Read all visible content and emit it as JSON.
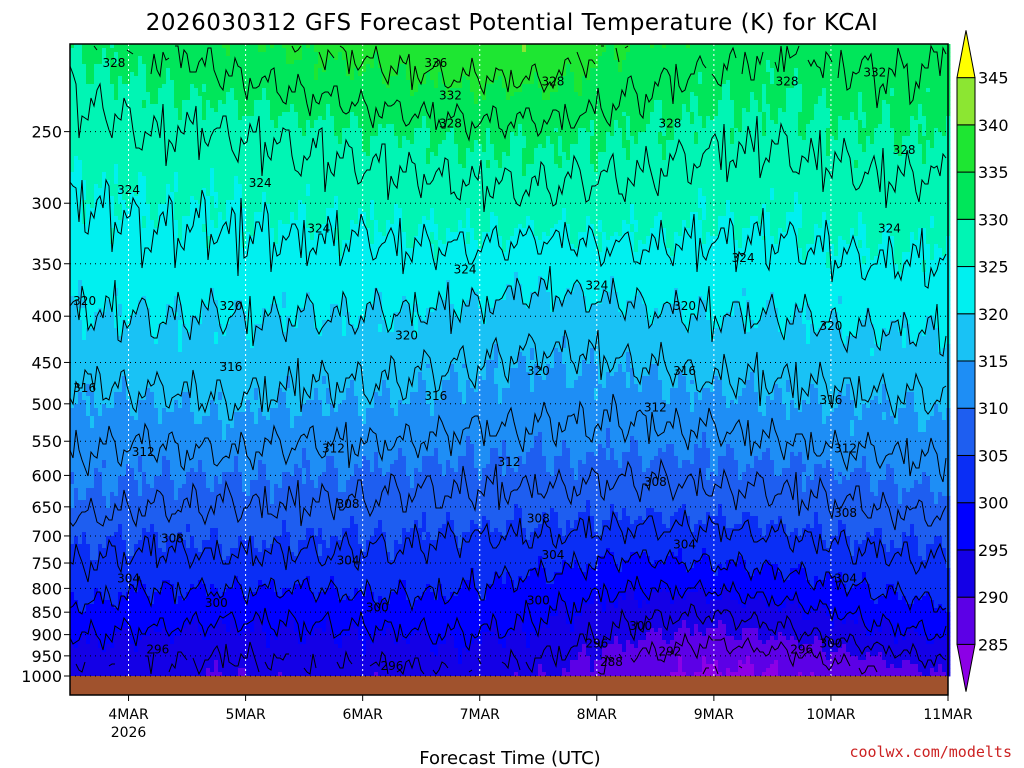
{
  "chart_data": {
    "type": "contour",
    "title": "2026030312 GFS Forecast Potential Temperature (K) for KCAI",
    "xlabel": "Forecast Time (UTC)",
    "ylabel": "",
    "credit": "coolwx.com/modelts",
    "y_axis": {
      "scale": "log",
      "inverted": true,
      "range": [
        1000,
        200
      ],
      "ticks": [
        250,
        300,
        350,
        400,
        450,
        500,
        550,
        600,
        650,
        700,
        750,
        800,
        850,
        900,
        950,
        1000
      ]
    },
    "x_axis": {
      "range": [
        "2026-03-03T12",
        "2026-03-11T00"
      ],
      "ticks": [
        {
          "value": "2026-03-04T00",
          "label": "4MAR",
          "sublabel": "2026"
        },
        {
          "value": "2026-03-05T00",
          "label": "5MAR",
          "sublabel": ""
        },
        {
          "value": "2026-03-06T00",
          "label": "6MAR",
          "sublabel": ""
        },
        {
          "value": "2026-03-07T00",
          "label": "7MAR",
          "sublabel": ""
        },
        {
          "value": "2026-03-08T00",
          "label": "8MAR",
          "sublabel": ""
        },
        {
          "value": "2026-03-09T00",
          "label": "9MAR",
          "sublabel": ""
        },
        {
          "value": "2026-03-10T00",
          "label": "10MAR",
          "sublabel": ""
        },
        {
          "value": "2026-03-11T00",
          "label": "11MAR",
          "sublabel": ""
        }
      ]
    },
    "grid": true,
    "colorbar": {
      "placement": "right",
      "labels": [
        285,
        290,
        295,
        300,
        305,
        310,
        315,
        320,
        325,
        330,
        335,
        340,
        345
      ],
      "colors": [
        "#8c00e6",
        "#5c00e6",
        "#1400e6",
        "#0000ff",
        "#0a2ef5",
        "#1e5ef0",
        "#1e8ef5",
        "#19c2f5",
        "#00f0f0",
        "#00f5b4",
        "#00e65a",
        "#1ee632",
        "#8ce632",
        "#ffff00"
      ]
    },
    "ground_color": "#a0522d",
    "contour_interval": 4,
    "levels": [
      {
        "p": 1000,
        "theta": [
          292,
          292,
          290,
          292,
          291,
          292,
          290,
          287,
          284,
          285,
          287,
          290
        ]
      },
      {
        "p": 950,
        "theta": [
          294,
          293,
          292,
          293,
          293,
          294,
          292,
          288,
          286,
          287,
          290,
          293
        ]
      },
      {
        "p": 900,
        "theta": [
          296,
          295,
          294,
          295,
          295,
          296,
          294,
          291,
          289,
          291,
          294,
          296
        ]
      },
      {
        "p": 850,
        "theta": [
          299,
          298,
          297,
          297,
          298,
          298,
          296,
          293,
          292,
          294,
          297,
          299
        ]
      },
      {
        "p": 800,
        "theta": [
          302,
          300,
          300,
          300,
          301,
          300,
          298,
          296,
          296,
          298,
          300,
          302
        ]
      },
      {
        "p": 750,
        "theta": [
          304,
          303,
          303,
          303,
          303,
          302,
          301,
          299,
          300,
          301,
          303,
          304
        ]
      },
      {
        "p": 700,
        "theta": [
          306,
          305,
          306,
          305,
          305,
          304,
          304,
          303,
          303,
          304,
          305,
          306
        ]
      },
      {
        "p": 650,
        "theta": [
          309,
          308,
          308,
          308,
          307,
          307,
          306,
          306,
          306,
          307,
          308,
          309
        ]
      },
      {
        "p": 600,
        "theta": [
          311,
          310,
          310,
          310,
          309,
          309,
          309,
          308,
          309,
          309,
          310,
          311
        ]
      },
      {
        "p": 550,
        "theta": [
          313,
          312,
          313,
          312,
          312,
          311,
          311,
          311,
          311,
          312,
          313,
          313
        ]
      },
      {
        "p": 500,
        "theta": [
          315,
          315,
          316,
          315,
          315,
          314,
          313,
          313,
          314,
          315,
          315,
          316
        ]
      },
      {
        "p": 450,
        "theta": [
          317,
          318,
          318,
          317,
          317,
          316,
          315,
          316,
          317,
          317,
          318,
          318
        ]
      },
      {
        "p": 400,
        "theta": [
          320,
          320,
          320,
          320,
          320,
          319,
          318,
          319,
          320,
          320,
          321,
          321
        ]
      },
      {
        "p": 350,
        "theta": [
          322,
          323,
          323,
          323,
          323,
          323,
          322,
          323,
          323,
          323,
          324,
          324
        ]
      },
      {
        "p": 300,
        "theta": [
          324,
          325,
          325,
          326,
          326,
          327,
          327,
          327,
          326,
          326,
          327,
          327
        ]
      },
      {
        "p": 250,
        "theta": [
          327,
          328,
          328,
          329,
          330,
          331,
          331,
          330,
          329,
          329,
          330,
          330
        ]
      },
      {
        "p": 200,
        "theta": [
          330,
          332,
          334,
          336,
          338,
          339,
          339,
          335,
          333,
          332,
          333,
          333
        ]
      }
    ],
    "contour_labels": [
      {
        "value": "328",
        "time": "2026-03-03T21",
        "p": 210
      },
      {
        "value": "336",
        "time": "2026-03-06T15",
        "p": 210
      },
      {
        "value": "332",
        "time": "2026-03-06T18",
        "p": 228
      },
      {
        "value": "328",
        "time": "2026-03-06T18",
        "p": 245
      },
      {
        "value": "328",
        "time": "2026-03-07T15",
        "p": 220
      },
      {
        "value": "328",
        "time": "2026-03-08T15",
        "p": 245
      },
      {
        "value": "328",
        "time": "2026-03-09T15",
        "p": 220
      },
      {
        "value": "332",
        "time": "2026-03-10T09",
        "p": 215
      },
      {
        "value": "328",
        "time": "2026-03-10T15",
        "p": 262
      },
      {
        "value": "324",
        "time": "2026-03-04T00",
        "p": 290
      },
      {
        "value": "324",
        "time": "2026-03-05T03",
        "p": 285
      },
      {
        "value": "324",
        "time": "2026-03-05T15",
        "p": 320
      },
      {
        "value": "324",
        "time": "2026-03-06T21",
        "p": 355
      },
      {
        "value": "324",
        "time": "2026-03-08T00",
        "p": 370
      },
      {
        "value": "324",
        "time": "2026-03-09T06",
        "p": 345
      },
      {
        "value": "324",
        "time": "2026-03-10T12",
        "p": 320
      },
      {
        "value": "320",
        "time": "2026-03-03T15",
        "p": 385
      },
      {
        "value": "320",
        "time": "2026-03-04T21",
        "p": 390
      },
      {
        "value": "320",
        "time": "2026-03-06T09",
        "p": 420
      },
      {
        "value": "320",
        "time": "2026-03-07T12",
        "p": 460
      },
      {
        "value": "320",
        "time": "2026-03-08T18",
        "p": 390
      },
      {
        "value": "320",
        "time": "2026-03-10T00",
        "p": 410
      },
      {
        "value": "316",
        "time": "2026-03-03T15",
        "p": 480
      },
      {
        "value": "316",
        "time": "2026-03-04T21",
        "p": 455
      },
      {
        "value": "316",
        "time": "2026-03-06T15",
        "p": 490
      },
      {
        "value": "316",
        "time": "2026-03-08T18",
        "p": 460
      },
      {
        "value": "316",
        "time": "2026-03-10T00",
        "p": 495
      },
      {
        "value": "312",
        "time": "2026-03-04T03",
        "p": 565
      },
      {
        "value": "312",
        "time": "2026-03-05T18",
        "p": 560
      },
      {
        "value": "312",
        "time": "2026-03-07T06",
        "p": 580
      },
      {
        "value": "312",
        "time": "2026-03-08T12",
        "p": 505
      },
      {
        "value": "312",
        "time": "2026-03-10T03",
        "p": 560
      },
      {
        "value": "308",
        "time": "2026-03-04T09",
        "p": 705
      },
      {
        "value": "308",
        "time": "2026-03-05T21",
        "p": 645
      },
      {
        "value": "308",
        "time": "2026-03-07T12",
        "p": 670
      },
      {
        "value": "308",
        "time": "2026-03-08T12",
        "p": 610
      },
      {
        "value": "308",
        "time": "2026-03-10T03",
        "p": 660
      },
      {
        "value": "304",
        "time": "2026-03-04T00",
        "p": 780
      },
      {
        "value": "304",
        "time": "2026-03-05T21",
        "p": 745
      },
      {
        "value": "304",
        "time": "2026-03-07T15",
        "p": 735
      },
      {
        "value": "304",
        "time": "2026-03-08T18",
        "p": 715
      },
      {
        "value": "304",
        "time": "2026-03-10T03",
        "p": 780
      },
      {
        "value": "300",
        "time": "2026-03-04T18",
        "p": 830
      },
      {
        "value": "300",
        "time": "2026-03-06T03",
        "p": 840
      },
      {
        "value": "300",
        "time": "2026-03-07T12",
        "p": 825
      },
      {
        "value": "300",
        "time": "2026-03-08T09",
        "p": 880
      },
      {
        "value": "300",
        "time": "2026-03-10T00",
        "p": 920
      },
      {
        "value": "296",
        "time": "2026-03-04T06",
        "p": 935
      },
      {
        "value": "296",
        "time": "2026-03-06T06",
        "p": 975
      },
      {
        "value": "296",
        "time": "2026-03-08T00",
        "p": 920
      },
      {
        "value": "296",
        "time": "2026-03-09T18",
        "p": 935
      },
      {
        "value": "292",
        "time": "2026-03-08T15",
        "p": 940
      },
      {
        "value": "288",
        "time": "2026-03-08T03",
        "p": 965
      }
    ]
  }
}
